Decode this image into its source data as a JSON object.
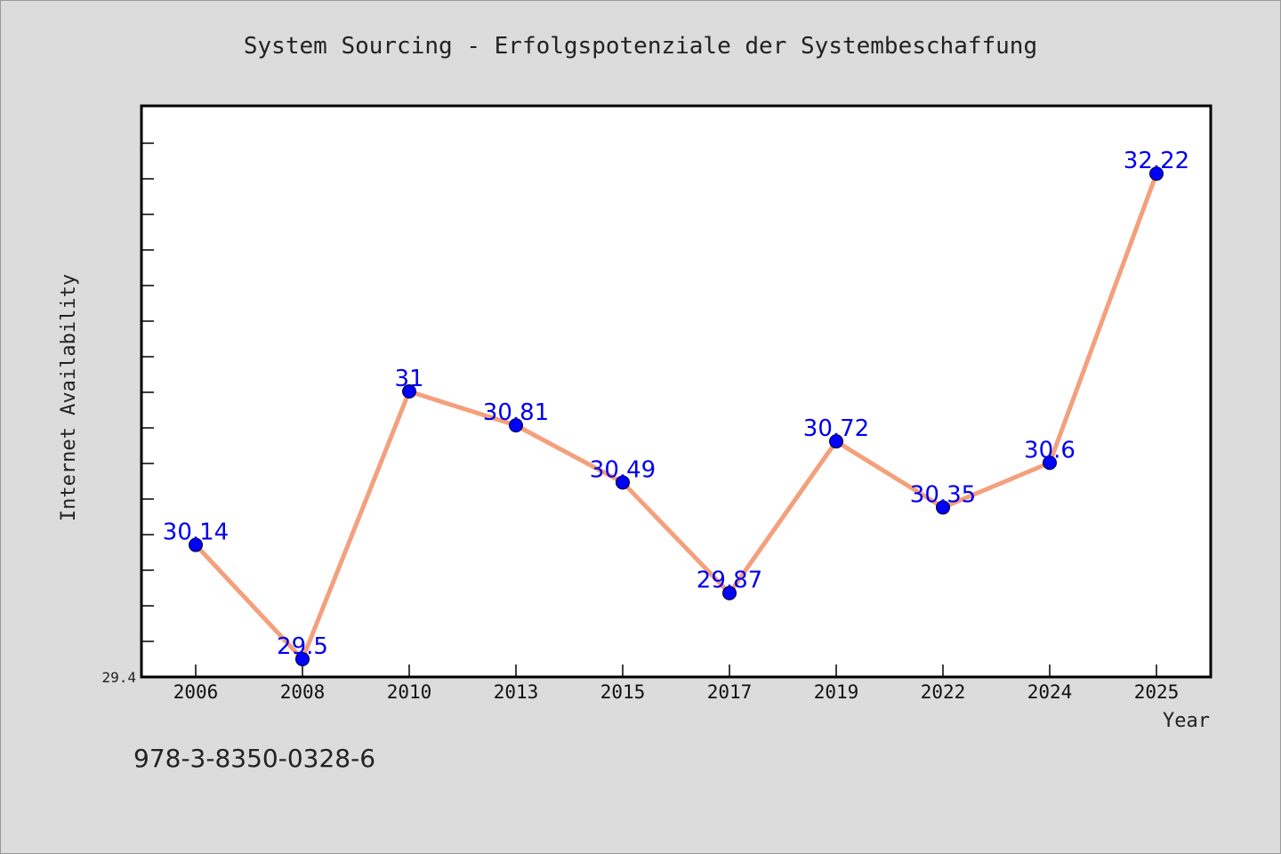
{
  "chart_data": {
    "type": "line",
    "title": "System Sourcing - Erfolgspotenziale der Systembeschaffung",
    "xlabel": "Year",
    "ylabel": "Internet Availability",
    "categories": [
      "2006",
      "2008",
      "2010",
      "2013",
      "2015",
      "2017",
      "2019",
      "2022",
      "2024",
      "2025"
    ],
    "series": [
      {
        "values": [
          30.14,
          29.5,
          31,
          30.81,
          30.49,
          29.87,
          30.72,
          30.35,
          30.6,
          32.22
        ],
        "line_color": "#f4a07c",
        "marker_color": "#0000ff"
      }
    ],
    "data_labels": [
      "30.14",
      "29.5",
      "31",
      "30.81",
      "30.49",
      "29.87",
      "30.72",
      "30.35",
      "30.6",
      "32.22"
    ],
    "y_min_label": "29.4",
    "ylim": [
      29.4,
      32.6
    ],
    "grid": false,
    "label_color": "#0000ee"
  },
  "footer": {
    "isbn": "978-3-8350-0328-6"
  }
}
